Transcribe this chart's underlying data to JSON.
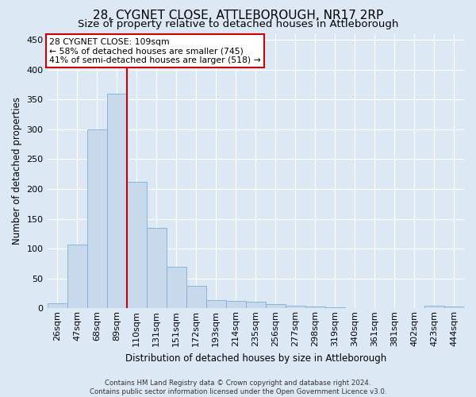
{
  "title": "28, CYGNET CLOSE, ATTLEBOROUGH, NR17 2RP",
  "subtitle": "Size of property relative to detached houses in Attleborough",
  "xlabel": "Distribution of detached houses by size in Attleborough",
  "ylabel": "Number of detached properties",
  "categories": [
    "26sqm",
    "47sqm",
    "68sqm",
    "89sqm",
    "110sqm",
    "131sqm",
    "151sqm",
    "172sqm",
    "193sqm",
    "214sqm",
    "235sqm",
    "256sqm",
    "277sqm",
    "298sqm",
    "319sqm",
    "340sqm",
    "361sqm",
    "381sqm",
    "402sqm",
    "423sqm",
    "444sqm"
  ],
  "values": [
    8,
    107,
    300,
    360,
    212,
    135,
    70,
    38,
    14,
    12,
    11,
    7,
    5,
    3,
    2,
    0,
    0,
    0,
    0,
    4,
    3
  ],
  "bar_color": "#c8d9ec",
  "bar_edge_color": "#7bafd4",
  "background_color": "#dde8f5",
  "plot_bg_color": "#dde8f5",
  "grid_color": "#ffffff",
  "red_line_index": 4,
  "annotation_line1": "28 CYGNET CLOSE: 109sqm",
  "annotation_line2": "← 58% of detached houses are smaller (745)",
  "annotation_line3": "41% of semi-detached houses are larger (518) →",
  "annotation_box_color": "#ffffff",
  "annotation_box_edge": "#cc0000",
  "red_line_color": "#cc0000",
  "footer_line1": "Contains HM Land Registry data © Crown copyright and database right 2024.",
  "footer_line2": "Contains public sector information licensed under the Open Government Licence v3.0.",
  "ylim": [
    0,
    460
  ],
  "yticks": [
    0,
    50,
    100,
    150,
    200,
    250,
    300,
    350,
    400,
    450
  ],
  "title_fontsize": 11,
  "subtitle_fontsize": 9.5,
  "tick_fontsize": 8,
  "ylabel_fontsize": 8.5,
  "xlabel_fontsize": 8.5,
  "annotation_fontsize": 7.8,
  "footer_fontsize": 6.2
}
